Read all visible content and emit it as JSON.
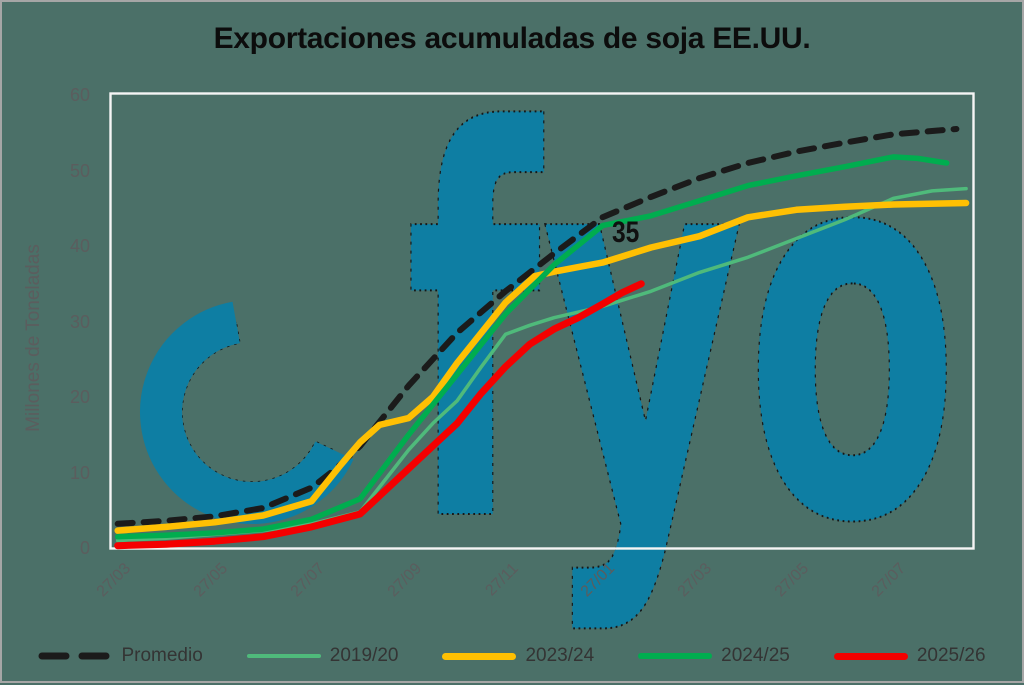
{
  "title": "Exportaciones acumuladas de soja EE.UU.",
  "watermark": {
    "text": "fyo"
  },
  "y_axis": {
    "label": "Millones de Toneladas"
  },
  "chart_data": {
    "type": "line",
    "title": "Exportaciones acumuladas de soja EE.UU.",
    "xlabel": "",
    "ylabel": "Millones de Toneladas",
    "ylim": [
      0,
      60
    ],
    "y_ticks": [
      0,
      10,
      20,
      30,
      40,
      50,
      60
    ],
    "x_tick_labels": [
      "27/03",
      "27/05",
      "27/07",
      "27/09",
      "27/11",
      "27/01",
      "27/03",
      "27/05",
      "27/07"
    ],
    "x_tick_months": [
      0,
      2,
      4,
      6,
      8,
      10,
      12,
      14,
      16
    ],
    "grid": "off",
    "legend_position": "bottom",
    "annotation": {
      "text": "35",
      "month": 10.2,
      "value": 41.6
    },
    "series": [
      {
        "name": "Promedio",
        "color": "#1B1B1B",
        "style": "dashed",
        "width": 6,
        "points": [
          [
            0,
            3.2
          ],
          [
            1,
            3.6
          ],
          [
            2,
            4.2
          ],
          [
            3,
            5.3
          ],
          [
            4,
            8.0
          ],
          [
            4.5,
            10.5
          ],
          [
            5,
            13.5
          ],
          [
            6,
            21.5
          ],
          [
            7,
            28.5
          ],
          [
            8,
            34.0
          ],
          [
            9,
            39.0
          ],
          [
            10,
            43.8
          ],
          [
            11,
            46.5
          ],
          [
            12,
            49.0
          ],
          [
            13,
            51.0
          ],
          [
            14,
            52.5
          ],
          [
            15,
            53.7
          ],
          [
            16,
            54.8
          ],
          [
            17.3,
            55.5
          ]
        ]
      },
      {
        "name": "2019/20",
        "color": "#4FBA7B",
        "style": "solid",
        "width": 3.5,
        "points": [
          [
            0,
            1.0
          ],
          [
            1,
            1.3
          ],
          [
            2,
            1.8
          ],
          [
            3,
            2.3
          ],
          [
            4,
            3.2
          ],
          [
            5,
            4.8
          ],
          [
            6,
            13.0
          ],
          [
            6.5,
            16.5
          ],
          [
            7,
            19.5
          ],
          [
            7.5,
            24.0
          ],
          [
            8,
            28.3
          ],
          [
            8.5,
            29.5
          ],
          [
            9,
            30.5
          ],
          [
            10,
            32.0
          ],
          [
            11,
            34.0
          ],
          [
            12,
            36.5
          ],
          [
            13,
            38.5
          ],
          [
            14,
            41.0
          ],
          [
            15,
            43.5
          ],
          [
            16,
            46.3
          ],
          [
            16.8,
            47.3
          ],
          [
            17.5,
            47.6
          ]
        ]
      },
      {
        "name": "2023/24",
        "color": "#FFC003",
        "style": "solid",
        "width": 6.5,
        "points": [
          [
            0,
            2.3
          ],
          [
            1,
            2.8
          ],
          [
            2,
            3.4
          ],
          [
            3,
            4.3
          ],
          [
            4,
            6.2
          ],
          [
            4.6,
            11.0
          ],
          [
            5,
            14.0
          ],
          [
            5.4,
            16.3
          ],
          [
            6,
            17.2
          ],
          [
            6.5,
            20.0
          ],
          [
            7,
            24.5
          ],
          [
            7.5,
            28.5
          ],
          [
            8,
            32.5
          ],
          [
            8.6,
            36.0
          ],
          [
            9,
            36.6
          ],
          [
            9.5,
            37.2
          ],
          [
            10,
            37.8
          ],
          [
            11,
            39.8
          ],
          [
            12,
            41.3
          ],
          [
            13,
            43.8
          ],
          [
            14,
            44.8
          ],
          [
            15,
            45.2
          ],
          [
            16,
            45.5
          ],
          [
            17.5,
            45.7
          ]
        ]
      },
      {
        "name": "2024/25",
        "color": "#00AD4F",
        "style": "solid",
        "width": 5.5,
        "points": [
          [
            0,
            1.5
          ],
          [
            1,
            1.7
          ],
          [
            2,
            2.0
          ],
          [
            3,
            2.5
          ],
          [
            4,
            3.8
          ],
          [
            5,
            6.5
          ],
          [
            6,
            15.0
          ],
          [
            7,
            23.0
          ],
          [
            8,
            31.0
          ],
          [
            9,
            37.5
          ],
          [
            10,
            42.7
          ],
          [
            11,
            44.0
          ],
          [
            12,
            46.0
          ],
          [
            13,
            48.0
          ],
          [
            14,
            49.3
          ],
          [
            15,
            50.5
          ],
          [
            16,
            51.8
          ],
          [
            16.5,
            51.6
          ],
          [
            17.1,
            51.0
          ]
        ]
      },
      {
        "name": "2025/26",
        "color": "#F40000",
        "style": "solid",
        "width": 7,
        "points": [
          [
            0,
            0.3
          ],
          [
            1,
            0.5
          ],
          [
            2,
            0.9
          ],
          [
            3,
            1.5
          ],
          [
            4,
            2.8
          ],
          [
            5,
            4.5
          ],
          [
            6,
            10.5
          ],
          [
            6.5,
            13.5
          ],
          [
            7,
            16.5
          ],
          [
            7.5,
            20.5
          ],
          [
            8,
            24.0
          ],
          [
            8.5,
            27.0
          ],
          [
            9,
            29.0
          ],
          [
            9.5,
            30.5
          ],
          [
            10,
            32.3
          ],
          [
            10.4,
            33.8
          ],
          [
            10.8,
            35.0
          ]
        ]
      }
    ]
  }
}
